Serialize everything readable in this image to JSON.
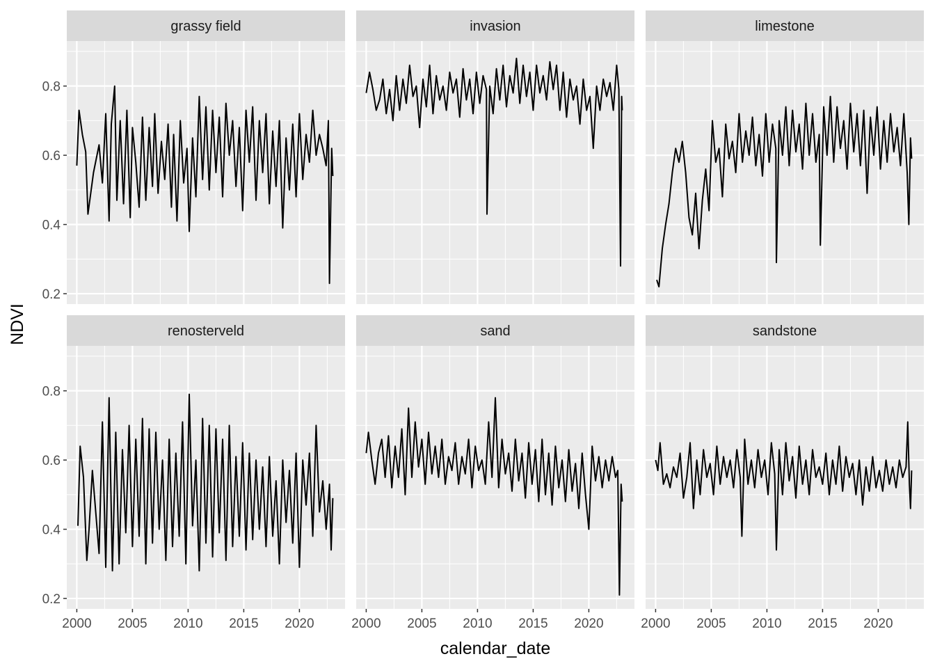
{
  "chart_data": {
    "type": "line",
    "xlabel": "calendar_date",
    "ylabel": "NDVI",
    "x_ticks": [
      2000,
      2005,
      2010,
      2015,
      2020
    ],
    "y_ticks": [
      0.2,
      0.4,
      0.6,
      0.8
    ],
    "y_tick_labels": [
      "0.2",
      "0.4",
      "0.6",
      "0.8"
    ],
    "xlim": [
      1999.1,
      2024.1
    ],
    "ylim": [
      0.17,
      0.93
    ],
    "grid": true,
    "line_color": "#000000",
    "panel_background": "#ebebeb",
    "strip_background": "#d9d9d9",
    "grid_color": "#ffffff",
    "facets": [
      {
        "name": "grassy field",
        "x": [
          2000.0,
          2000.2,
          2000.5,
          2000.8,
          2001.0,
          2001.5,
          2002.0,
          2002.3,
          2002.6,
          2002.9,
          2003.1,
          2003.4,
          2003.6,
          2003.9,
          2004.2,
          2004.5,
          2004.8,
          2005.0,
          2005.3,
          2005.6,
          2005.9,
          2006.2,
          2006.5,
          2006.8,
          2007.0,
          2007.3,
          2007.6,
          2007.9,
          2008.2,
          2008.5,
          2008.7,
          2009.0,
          2009.3,
          2009.6,
          2009.9,
          2010.1,
          2010.4,
          2010.7,
          2011.0,
          2011.3,
          2011.6,
          2011.9,
          2012.2,
          2012.5,
          2012.8,
          2013.1,
          2013.4,
          2013.7,
          2014.0,
          2014.3,
          2014.6,
          2014.9,
          2015.2,
          2015.5,
          2015.8,
          2016.1,
          2016.4,
          2016.7,
          2017.0,
          2017.3,
          2017.6,
          2017.9,
          2018.2,
          2018.5,
          2018.8,
          2019.1,
          2019.4,
          2019.7,
          2020.0,
          2020.3,
          2020.6,
          2020.9,
          2021.2,
          2021.5,
          2021.8,
          2022.1,
          2022.4,
          2022.6,
          2022.7,
          2022.9,
          2023.0
        ],
        "y": [
          0.57,
          0.73,
          0.66,
          0.61,
          0.43,
          0.55,
          0.63,
          0.52,
          0.72,
          0.41,
          0.69,
          0.8,
          0.47,
          0.7,
          0.46,
          0.73,
          0.42,
          0.68,
          0.58,
          0.45,
          0.71,
          0.47,
          0.68,
          0.51,
          0.72,
          0.49,
          0.64,
          0.53,
          0.69,
          0.45,
          0.66,
          0.41,
          0.7,
          0.52,
          0.62,
          0.38,
          0.65,
          0.48,
          0.77,
          0.53,
          0.74,
          0.5,
          0.73,
          0.55,
          0.71,
          0.48,
          0.75,
          0.6,
          0.7,
          0.51,
          0.68,
          0.44,
          0.73,
          0.58,
          0.74,
          0.47,
          0.7,
          0.55,
          0.72,
          0.46,
          0.67,
          0.51,
          0.7,
          0.39,
          0.65,
          0.5,
          0.69,
          0.48,
          0.72,
          0.53,
          0.66,
          0.58,
          0.73,
          0.6,
          0.66,
          0.62,
          0.57,
          0.7,
          0.23,
          0.62,
          0.54
        ]
      },
      {
        "name": "invasion",
        "x": [
          2000.0,
          2000.3,
          2000.6,
          2000.9,
          2001.2,
          2001.5,
          2001.8,
          2002.1,
          2002.4,
          2002.7,
          2003.0,
          2003.3,
          2003.6,
          2003.9,
          2004.2,
          2004.5,
          2004.8,
          2005.1,
          2005.4,
          2005.7,
          2006.0,
          2006.3,
          2006.6,
          2006.9,
          2007.2,
          2007.5,
          2007.8,
          2008.1,
          2008.4,
          2008.7,
          2009.0,
          2009.3,
          2009.6,
          2009.9,
          2010.2,
          2010.5,
          2010.8,
          2010.85,
          2011.1,
          2011.4,
          2011.7,
          2012.0,
          2012.3,
          2012.6,
          2012.9,
          2013.2,
          2013.5,
          2013.8,
          2014.1,
          2014.4,
          2014.7,
          2015.0,
          2015.3,
          2015.6,
          2015.9,
          2016.2,
          2016.5,
          2016.8,
          2017.1,
          2017.4,
          2017.7,
          2018.0,
          2018.3,
          2018.6,
          2018.9,
          2019.2,
          2019.5,
          2019.8,
          2020.1,
          2020.4,
          2020.7,
          2021.0,
          2021.3,
          2021.6,
          2021.9,
          2022.2,
          2022.5,
          2022.7,
          2022.85,
          2022.95,
          2023.0
        ],
        "y": [
          0.78,
          0.84,
          0.79,
          0.73,
          0.76,
          0.82,
          0.72,
          0.79,
          0.7,
          0.83,
          0.73,
          0.82,
          0.75,
          0.86,
          0.77,
          0.8,
          0.68,
          0.82,
          0.74,
          0.86,
          0.72,
          0.83,
          0.76,
          0.8,
          0.73,
          0.84,
          0.78,
          0.82,
          0.71,
          0.85,
          0.76,
          0.82,
          0.72,
          0.84,
          0.75,
          0.83,
          0.79,
          0.43,
          0.8,
          0.72,
          0.85,
          0.76,
          0.86,
          0.74,
          0.83,
          0.78,
          0.88,
          0.75,
          0.86,
          0.77,
          0.84,
          0.73,
          0.86,
          0.78,
          0.83,
          0.76,
          0.87,
          0.79,
          0.86,
          0.73,
          0.84,
          0.71,
          0.82,
          0.76,
          0.8,
          0.69,
          0.82,
          0.73,
          0.77,
          0.62,
          0.8,
          0.73,
          0.82,
          0.77,
          0.81,
          0.73,
          0.86,
          0.79,
          0.28,
          0.77,
          0.73
        ]
      },
      {
        "name": "limestone",
        "x": [
          2000.1,
          2000.3,
          2000.6,
          2000.9,
          2001.2,
          2001.5,
          2001.8,
          2002.1,
          2002.4,
          2002.7,
          2003.0,
          2003.3,
          2003.6,
          2003.9,
          2004.2,
          2004.5,
          2004.8,
          2005.1,
          2005.4,
          2005.7,
          2006.0,
          2006.3,
          2006.6,
          2006.9,
          2007.2,
          2007.5,
          2007.8,
          2008.1,
          2008.4,
          2008.7,
          2009.0,
          2009.3,
          2009.6,
          2009.9,
          2010.2,
          2010.5,
          2010.8,
          2010.85,
          2011.1,
          2011.4,
          2011.7,
          2012.0,
          2012.3,
          2012.6,
          2012.9,
          2013.2,
          2013.5,
          2013.8,
          2014.1,
          2014.4,
          2014.7,
          2014.8,
          2015.1,
          2015.4,
          2015.7,
          2016.0,
          2016.3,
          2016.6,
          2016.9,
          2017.2,
          2017.5,
          2017.8,
          2018.1,
          2018.4,
          2018.7,
          2019.0,
          2019.3,
          2019.6,
          2019.9,
          2020.2,
          2020.5,
          2020.8,
          2021.1,
          2021.4,
          2021.7,
          2022.0,
          2022.3,
          2022.6,
          2022.75,
          2022.9,
          2023.0
        ],
        "y": [
          0.24,
          0.22,
          0.33,
          0.4,
          0.46,
          0.55,
          0.62,
          0.58,
          0.64,
          0.55,
          0.42,
          0.37,
          0.49,
          0.33,
          0.47,
          0.56,
          0.44,
          0.7,
          0.58,
          0.62,
          0.48,
          0.69,
          0.59,
          0.64,
          0.55,
          0.72,
          0.58,
          0.67,
          0.6,
          0.71,
          0.57,
          0.66,
          0.54,
          0.72,
          0.58,
          0.69,
          0.62,
          0.29,
          0.7,
          0.6,
          0.74,
          0.57,
          0.73,
          0.61,
          0.69,
          0.56,
          0.75,
          0.6,
          0.72,
          0.58,
          0.66,
          0.34,
          0.74,
          0.6,
          0.77,
          0.58,
          0.74,
          0.62,
          0.7,
          0.56,
          0.75,
          0.61,
          0.72,
          0.57,
          0.73,
          0.49,
          0.71,
          0.6,
          0.74,
          0.56,
          0.7,
          0.58,
          0.72,
          0.61,
          0.68,
          0.57,
          0.72,
          0.55,
          0.4,
          0.65,
          0.59
        ]
      },
      {
        "name": "renosterveld",
        "x": [
          2000.1,
          2000.3,
          2000.6,
          2000.9,
          2001.1,
          2001.4,
          2001.7,
          2002.0,
          2002.3,
          2002.6,
          2002.9,
          2003.2,
          2003.5,
          2003.8,
          2004.1,
          2004.4,
          2004.7,
          2005.0,
          2005.3,
          2005.6,
          2005.9,
          2006.2,
          2006.5,
          2006.8,
          2007.1,
          2007.4,
          2007.7,
          2008.0,
          2008.3,
          2008.6,
          2008.9,
          2009.2,
          2009.5,
          2009.8,
          2010.1,
          2010.4,
          2010.7,
          2011.0,
          2011.3,
          2011.6,
          2011.9,
          2012.2,
          2012.5,
          2012.8,
          2013.1,
          2013.4,
          2013.7,
          2014.0,
          2014.3,
          2014.6,
          2014.9,
          2015.2,
          2015.5,
          2015.8,
          2016.1,
          2016.4,
          2016.7,
          2017.0,
          2017.3,
          2017.6,
          2017.9,
          2018.2,
          2018.5,
          2018.8,
          2019.1,
          2019.4,
          2019.7,
          2020.0,
          2020.3,
          2020.6,
          2020.9,
          2021.2,
          2021.5,
          2021.8,
          2022.1,
          2022.4,
          2022.7,
          2022.85,
          2023.0
        ],
        "y": [
          0.41,
          0.64,
          0.55,
          0.31,
          0.4,
          0.57,
          0.45,
          0.33,
          0.71,
          0.29,
          0.78,
          0.28,
          0.68,
          0.3,
          0.63,
          0.39,
          0.7,
          0.35,
          0.66,
          0.38,
          0.72,
          0.3,
          0.69,
          0.36,
          0.68,
          0.4,
          0.6,
          0.31,
          0.66,
          0.35,
          0.62,
          0.38,
          0.71,
          0.3,
          0.79,
          0.41,
          0.6,
          0.28,
          0.72,
          0.36,
          0.7,
          0.32,
          0.69,
          0.39,
          0.66,
          0.31,
          0.7,
          0.35,
          0.61,
          0.38,
          0.65,
          0.34,
          0.62,
          0.37,
          0.6,
          0.4,
          0.58,
          0.35,
          0.61,
          0.38,
          0.54,
          0.3,
          0.6,
          0.42,
          0.57,
          0.36,
          0.62,
          0.29,
          0.6,
          0.47,
          0.62,
          0.38,
          0.7,
          0.45,
          0.54,
          0.4,
          0.53,
          0.34,
          0.49
        ]
      },
      {
        "name": "sand",
        "x": [
          2000.0,
          2000.2,
          2000.5,
          2000.8,
          2001.1,
          2001.4,
          2001.7,
          2002.0,
          2002.3,
          2002.6,
          2002.9,
          2003.2,
          2003.5,
          2003.8,
          2004.1,
          2004.4,
          2004.7,
          2005.0,
          2005.3,
          2005.6,
          2005.9,
          2006.2,
          2006.5,
          2006.8,
          2007.1,
          2007.4,
          2007.7,
          2008.0,
          2008.3,
          2008.6,
          2008.9,
          2009.2,
          2009.5,
          2009.8,
          2010.1,
          2010.4,
          2010.7,
          2011.0,
          2011.3,
          2011.6,
          2011.9,
          2012.2,
          2012.5,
          2012.8,
          2013.1,
          2013.4,
          2013.7,
          2014.0,
          2014.3,
          2014.6,
          2014.9,
          2015.2,
          2015.5,
          2015.8,
          2016.1,
          2016.4,
          2016.7,
          2017.0,
          2017.3,
          2017.6,
          2017.9,
          2018.2,
          2018.5,
          2018.8,
          2019.1,
          2019.4,
          2019.7,
          2020.0,
          2020.3,
          2020.6,
          2020.9,
          2021.2,
          2021.5,
          2021.8,
          2022.1,
          2022.4,
          2022.6,
          2022.75,
          2022.9,
          2023.0
        ],
        "y": [
          0.62,
          0.68,
          0.6,
          0.53,
          0.62,
          0.66,
          0.55,
          0.67,
          0.52,
          0.64,
          0.55,
          0.69,
          0.5,
          0.75,
          0.55,
          0.71,
          0.58,
          0.66,
          0.53,
          0.68,
          0.56,
          0.64,
          0.55,
          0.66,
          0.53,
          0.61,
          0.57,
          0.65,
          0.53,
          0.61,
          0.56,
          0.66,
          0.52,
          0.64,
          0.57,
          0.6,
          0.53,
          0.71,
          0.55,
          0.78,
          0.52,
          0.66,
          0.56,
          0.62,
          0.51,
          0.66,
          0.54,
          0.62,
          0.49,
          0.65,
          0.53,
          0.63,
          0.48,
          0.66,
          0.5,
          0.62,
          0.47,
          0.64,
          0.52,
          0.6,
          0.48,
          0.63,
          0.51,
          0.59,
          0.46,
          0.62,
          0.5,
          0.4,
          0.64,
          0.54,
          0.61,
          0.52,
          0.6,
          0.54,
          0.61,
          0.55,
          0.57,
          0.21,
          0.53,
          0.48
        ]
      },
      {
        "name": "sandstone",
        "x": [
          2000.0,
          2000.2,
          2000.4,
          2000.7,
          2001.0,
          2001.3,
          2001.6,
          2001.9,
          2002.2,
          2002.5,
          2002.8,
          2003.1,
          2003.4,
          2003.7,
          2004.0,
          2004.3,
          2004.6,
          2004.9,
          2005.2,
          2005.5,
          2005.8,
          2006.1,
          2006.4,
          2006.7,
          2007.0,
          2007.3,
          2007.6,
          2007.75,
          2008.0,
          2008.3,
          2008.6,
          2008.9,
          2009.2,
          2009.5,
          2009.8,
          2010.1,
          2010.4,
          2010.7,
          2010.85,
          2011.1,
          2011.4,
          2011.7,
          2012.0,
          2012.3,
          2012.6,
          2012.9,
          2013.2,
          2013.5,
          2013.8,
          2014.1,
          2014.4,
          2014.7,
          2015.0,
          2015.3,
          2015.6,
          2015.9,
          2016.2,
          2016.5,
          2016.8,
          2017.1,
          2017.4,
          2017.7,
          2018.0,
          2018.3,
          2018.6,
          2018.9,
          2019.2,
          2019.5,
          2019.8,
          2020.1,
          2020.4,
          2020.7,
          2021.0,
          2021.3,
          2021.6,
          2021.9,
          2022.2,
          2022.5,
          2022.65,
          2022.8,
          2022.9,
          2023.0
        ],
        "y": [
          0.6,
          0.57,
          0.65,
          0.53,
          0.56,
          0.52,
          0.58,
          0.55,
          0.62,
          0.49,
          0.55,
          0.65,
          0.46,
          0.6,
          0.5,
          0.63,
          0.55,
          0.59,
          0.5,
          0.64,
          0.53,
          0.61,
          0.55,
          0.6,
          0.52,
          0.63,
          0.55,
          0.38,
          0.66,
          0.53,
          0.6,
          0.52,
          0.63,
          0.55,
          0.6,
          0.5,
          0.65,
          0.56,
          0.34,
          0.63,
          0.5,
          0.65,
          0.54,
          0.61,
          0.49,
          0.64,
          0.53,
          0.6,
          0.5,
          0.63,
          0.55,
          0.58,
          0.53,
          0.62,
          0.5,
          0.6,
          0.53,
          0.64,
          0.51,
          0.61,
          0.55,
          0.59,
          0.5,
          0.6,
          0.47,
          0.58,
          0.51,
          0.61,
          0.52,
          0.57,
          0.51,
          0.6,
          0.53,
          0.58,
          0.52,
          0.6,
          0.55,
          0.58,
          0.71,
          0.53,
          0.46,
          0.57
        ]
      }
    ]
  }
}
